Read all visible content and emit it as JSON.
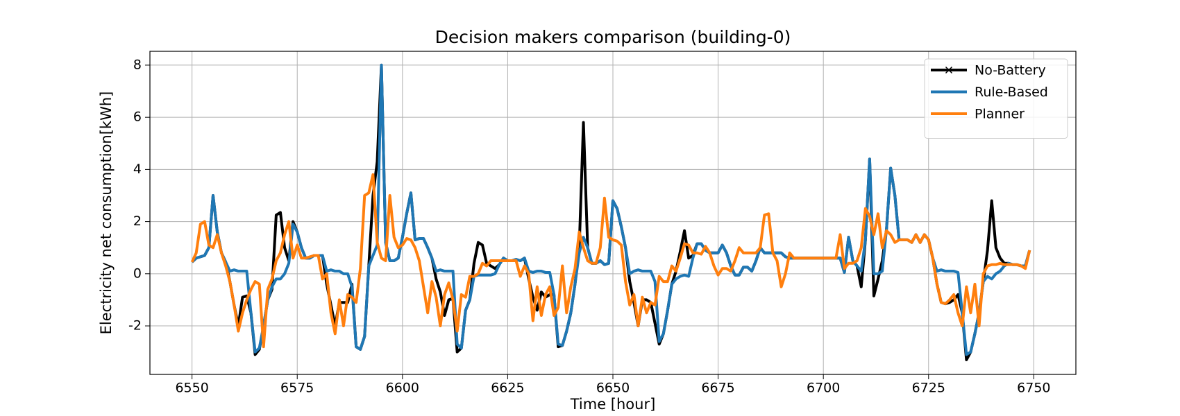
{
  "chart_data": {
    "type": "line",
    "title": "Decision makers comparison (building-0)",
    "xlabel": "Time [hour]",
    "ylabel": "Electricity net consumption[kWh]",
    "x": [
      6550,
      6551,
      6552,
      6553,
      6554,
      6555,
      6556,
      6557,
      6558,
      6559,
      6560,
      6561,
      6562,
      6563,
      6564,
      6565,
      6566,
      6567,
      6568,
      6569,
      6570,
      6571,
      6572,
      6573,
      6574,
      6575,
      6576,
      6577,
      6578,
      6579,
      6580,
      6581,
      6582,
      6583,
      6584,
      6585,
      6586,
      6587,
      6588,
      6589,
      6590,
      6591,
      6592,
      6593,
      6594,
      6595,
      6596,
      6597,
      6598,
      6599,
      6600,
      6601,
      6602,
      6603,
      6604,
      6605,
      6606,
      6607,
      6608,
      6609,
      6610,
      6611,
      6612,
      6613,
      6614,
      6615,
      6616,
      6617,
      6618,
      6619,
      6620,
      6621,
      6622,
      6623,
      6624,
      6625,
      6626,
      6627,
      6628,
      6629,
      6630,
      6631,
      6632,
      6633,
      6634,
      6635,
      6636,
      6637,
      6638,
      6639,
      6640,
      6641,
      6642,
      6643,
      6644,
      6645,
      6646,
      6647,
      6648,
      6649,
      6650,
      6651,
      6652,
      6653,
      6654,
      6655,
      6656,
      6657,
      6658,
      6659,
      6660,
      6661,
      6662,
      6663,
      6664,
      6665,
      6666,
      6667,
      6668,
      6669,
      6670,
      6671,
      6672,
      6673,
      6674,
      6675,
      6676,
      6677,
      6678,
      6679,
      6680,
      6681,
      6682,
      6683,
      6684,
      6685,
      6686,
      6687,
      6688,
      6689,
      6690,
      6691,
      6692,
      6693,
      6694,
      6695,
      6696,
      6697,
      6698,
      6699,
      6700,
      6701,
      6702,
      6703,
      6704,
      6705,
      6706,
      6707,
      6708,
      6709,
      6710,
      6711,
      6712,
      6713,
      6714,
      6715,
      6716,
      6717,
      6718,
      6719,
      6720,
      6721,
      6722,
      6723,
      6724,
      6725,
      6726,
      6727,
      6728,
      6729,
      6730,
      6731,
      6732,
      6733,
      6734,
      6735,
      6736,
      6737,
      6738,
      6739,
      6740,
      6741,
      6742,
      6743,
      6744,
      6745,
      6746,
      6747,
      6748,
      6749
    ],
    "series": [
      {
        "name": "No-Battery",
        "color": "#000000",
        "marker": "x",
        "values": [
          0.45,
          0.6,
          0.65,
          0.7,
          1.0,
          3.0,
          1.6,
          0.8,
          0.45,
          -0.3,
          -1.2,
          -2.0,
          -0.9,
          -0.85,
          -1.5,
          -3.1,
          -2.9,
          -2.0,
          -1.0,
          -0.6,
          2.25,
          2.35,
          1.0,
          0.5,
          2.0,
          1.6,
          1.0,
          0.6,
          0.6,
          0.7,
          0.7,
          0.7,
          -0.4,
          -1.2,
          -2.0,
          -1.1,
          -1.1,
          -1.1,
          -0.4,
          -2.8,
          -2.9,
          -2.4,
          0.3,
          3.0,
          4.3,
          8.0,
          1.2,
          0.5,
          0.5,
          0.6,
          1.4,
          2.3,
          3.1,
          1.3,
          1.35,
          1.35,
          1.0,
          0.6,
          -0.2,
          -0.7,
          -1.6,
          -1.0,
          -0.95,
          -3.0,
          -2.85,
          -1.4,
          -1.0,
          0.4,
          1.2,
          1.1,
          0.4,
          0.3,
          0.2,
          0.35,
          0.6,
          0.5,
          0.5,
          0.55,
          0.5,
          0.6,
          -0.2,
          -0.9,
          -1.4,
          -0.7,
          -0.9,
          -0.8,
          -0.8,
          -2.8,
          -2.75,
          -2.2,
          -1.5,
          -0.4,
          1.0,
          5.8,
          1.0,
          0.4,
          0.4,
          0.5,
          0.35,
          0.4,
          2.8,
          2.5,
          1.8,
          1.0,
          -0.3,
          -1.1,
          -2.0,
          -1.0,
          -1.0,
          -1.1,
          -1.9,
          -2.7,
          -2.3,
          -1.4,
          -0.4,
          0.1,
          0.85,
          1.65,
          0.6,
          0.7,
          1.15,
          1.15,
          0.9,
          0.8,
          0.8,
          0.8,
          1.1,
          0.8,
          0.3,
          -0.05,
          -0.05,
          0.25,
          0.25,
          0.1,
          0.5,
          1.0,
          0.8,
          0.8,
          0.8,
          0.8,
          0.8,
          0.65,
          0.6,
          0.6,
          0.6,
          0.6,
          0.6,
          0.6,
          0.6,
          0.6,
          0.6,
          0.6,
          0.6,
          0.6,
          0.6,
          0.05,
          1.4,
          0.5,
          0.3,
          -0.5,
          1.3,
          4.4,
          -0.85,
          -0.2,
          0.5,
          1.7,
          4.05,
          3.0,
          1.3,
          1.3,
          1.3,
          1.2,
          1.5,
          1.2,
          1.5,
          1.3,
          0.6,
          -0.4,
          -1.1,
          -1.15,
          -1.1,
          -1.0,
          -0.8,
          -1.5,
          -3.3,
          -3.0,
          -2.3,
          -1.5,
          -0.3,
          0.9,
          2.8,
          1.0,
          0.6,
          0.4,
          0.4,
          0.35,
          0.35,
          0.3,
          0.3,
          0.9
        ]
      },
      {
        "name": "Rule-Based",
        "color": "#1f77b4",
        "values": [
          0.45,
          0.6,
          0.65,
          0.7,
          1.0,
          3.0,
          1.6,
          0.8,
          0.45,
          0.1,
          0.15,
          0.1,
          0.1,
          0.1,
          -1.5,
          -3.0,
          -2.85,
          -2.0,
          -1.0,
          -0.5,
          -0.2,
          -0.2,
          0.0,
          0.4,
          1.9,
          1.6,
          1.0,
          0.6,
          0.6,
          0.7,
          0.7,
          0.7,
          0.1,
          0.15,
          0.1,
          0.1,
          0.0,
          0.0,
          -0.5,
          -2.8,
          -2.9,
          -2.4,
          0.3,
          0.7,
          1.1,
          8.0,
          1.2,
          0.5,
          0.5,
          0.6,
          1.4,
          2.3,
          3.1,
          1.3,
          1.35,
          1.35,
          1.0,
          0.6,
          0.1,
          0.15,
          0.1,
          0.1,
          0.1,
          -2.7,
          -2.85,
          -1.4,
          -1.0,
          -0.1,
          -0.05,
          -0.05,
          -0.05,
          -0.05,
          0.0,
          0.35,
          0.6,
          0.5,
          0.5,
          0.55,
          0.5,
          0.6,
          0.1,
          0.05,
          0.1,
          0.1,
          0.05,
          0.05,
          -0.8,
          -2.7,
          -2.75,
          -2.2,
          -1.5,
          -0.4,
          0.8,
          1.4,
          1.0,
          0.4,
          0.4,
          0.5,
          0.35,
          0.4,
          2.8,
          2.5,
          1.8,
          1.0,
          0.0,
          0.1,
          0.15,
          0.1,
          0.1,
          0.1,
          -0.3,
          -2.6,
          -2.3,
          -1.4,
          -0.4,
          -0.2,
          -0.1,
          -0.05,
          -0.1,
          0.6,
          1.15,
          1.15,
          0.9,
          0.8,
          0.8,
          0.8,
          1.1,
          0.8,
          0.3,
          -0.05,
          -0.05,
          0.25,
          0.25,
          0.1,
          0.5,
          1.0,
          0.8,
          0.8,
          0.8,
          0.8,
          0.8,
          0.65,
          0.6,
          0.6,
          0.6,
          0.6,
          0.6,
          0.6,
          0.6,
          0.6,
          0.6,
          0.6,
          0.6,
          0.6,
          0.6,
          0.05,
          1.4,
          0.5,
          0.3,
          0.1,
          1.3,
          4.4,
          0.0,
          0.0,
          0.1,
          1.7,
          4.05,
          3.0,
          1.3,
          1.3,
          1.3,
          1.2,
          1.5,
          1.2,
          1.5,
          1.3,
          0.6,
          0.1,
          0.15,
          0.1,
          0.1,
          0.1,
          0.05,
          -1.5,
          -3.1,
          -3.0,
          -2.3,
          -1.5,
          -0.3,
          -0.1,
          -0.2,
          0.0,
          0.1,
          0.3,
          0.4,
          0.35,
          0.35,
          0.3,
          0.3,
          0.9
        ]
      },
      {
        "name": "Planner",
        "color": "#ff7f0e",
        "values": [
          0.45,
          0.8,
          1.9,
          2.0,
          1.1,
          1.0,
          1.5,
          0.8,
          0.3,
          -0.3,
          -1.2,
          -2.2,
          -1.5,
          -1.0,
          -0.6,
          -0.3,
          -0.4,
          -2.8,
          -0.6,
          -0.2,
          0.5,
          0.8,
          1.5,
          2.0,
          0.6,
          1.1,
          0.6,
          0.6,
          0.65,
          0.7,
          0.7,
          -0.2,
          0.0,
          -1.5,
          -2.3,
          -1.0,
          -2.0,
          -0.8,
          -0.9,
          -1.1,
          0.2,
          3.0,
          3.1,
          3.8,
          1.2,
          0.6,
          0.5,
          3.0,
          1.4,
          1.0,
          1.1,
          1.35,
          1.3,
          1.0,
          0.5,
          -0.5,
          -1.5,
          -0.3,
          -0.9,
          -2.0,
          -0.8,
          -0.35,
          -1.0,
          -2.2,
          -0.8,
          -0.9,
          -0.1,
          -0.1,
          0.0,
          0.4,
          0.3,
          0.5,
          0.5,
          0.5,
          0.5,
          0.5,
          0.5,
          0.5,
          -0.1,
          0.3,
          0.0,
          -1.8,
          -0.5,
          -1.6,
          -0.8,
          -0.5,
          -1.6,
          -1.3,
          0.3,
          -1.5,
          -0.5,
          0.2,
          1.6,
          1.0,
          0.5,
          0.4,
          0.4,
          1.0,
          2.9,
          1.4,
          1.3,
          1.25,
          1.1,
          -0.3,
          -1.2,
          -0.8,
          -2.0,
          -0.9,
          -1.5,
          -1.1,
          -1.2,
          -0.1,
          -0.3,
          -0.3,
          0.3,
          0.1,
          0.6,
          1.15,
          1.1,
          0.8,
          0.8,
          0.75,
          1.05,
          0.8,
          0.3,
          -0.05,
          0.2,
          0.2,
          0.1,
          0.5,
          1.0,
          0.8,
          0.8,
          0.8,
          0.8,
          1.0,
          2.25,
          2.3,
          0.8,
          0.5,
          -0.5,
          0.0,
          0.8,
          0.6,
          0.6,
          0.6,
          0.6,
          0.6,
          0.6,
          0.6,
          0.6,
          0.6,
          0.6,
          0.6,
          1.5,
          0.2,
          0.4,
          0.4,
          0.5,
          1.0,
          2.5,
          2.2,
          1.5,
          2.3,
          1.0,
          1.65,
          1.5,
          1.2,
          1.3,
          1.3,
          1.3,
          1.2,
          1.5,
          1.2,
          1.5,
          1.3,
          0.6,
          -0.4,
          -1.1,
          -1.15,
          -1.0,
          -0.8,
          -1.5,
          -2.0,
          -0.5,
          -1.5,
          -0.4,
          -2.0,
          0.0,
          0.3,
          0.35,
          0.35,
          0.4,
          0.35,
          0.35,
          0.35,
          0.35,
          0.3,
          0.2,
          0.9
        ]
      }
    ],
    "xlim": [
      6540,
      6760
    ],
    "ylim": [
      -3.86,
      8.53
    ],
    "xticks": [
      6550,
      6575,
      6600,
      6625,
      6650,
      6675,
      6700,
      6725,
      6750
    ],
    "yticks": [
      -2,
      0,
      2,
      4,
      6,
      8
    ],
    "grid": true,
    "legend": "upper right"
  }
}
